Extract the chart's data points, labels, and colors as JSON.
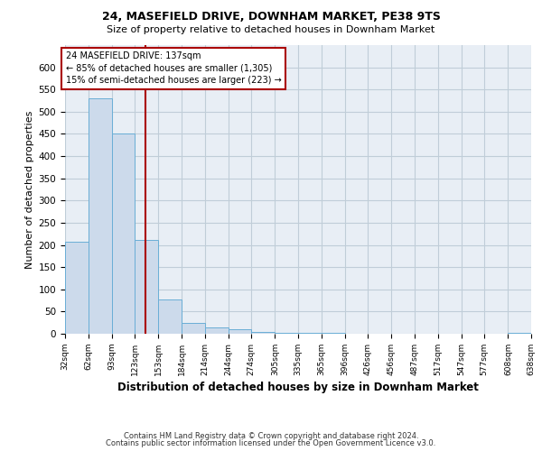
{
  "title1": "24, MASEFIELD DRIVE, DOWNHAM MARKET, PE38 9TS",
  "title2": "Size of property relative to detached houses in Downham Market",
  "xlabel": "Distribution of detached houses by size in Downham Market",
  "ylabel": "Number of detached properties",
  "bin_edges": [
    32,
    62,
    93,
    123,
    153,
    184,
    214,
    244,
    274,
    305,
    335,
    365,
    396,
    426,
    456,
    487,
    517,
    547,
    577,
    608,
    638
  ],
  "bar_heights": [
    208,
    530,
    450,
    212,
    78,
    25,
    15,
    10,
    5,
    3,
    2,
    3,
    1,
    1,
    1,
    1,
    1,
    1,
    1,
    3
  ],
  "bar_color": "#ccdaeb",
  "bar_edge_color": "#6aaed6",
  "vline_x": 137,
  "vline_color": "#aa0000",
  "annotation_title": "24 MASEFIELD DRIVE: 137sqm",
  "annotation_line1": "← 85% of detached houses are smaller (1,305)",
  "annotation_line2": "15% of semi-detached houses are larger (223) →",
  "annotation_box_color": "#ffffff",
  "annotation_box_edge": "#aa0000",
  "ylim": [
    0,
    650
  ],
  "yticks": [
    0,
    50,
    100,
    150,
    200,
    250,
    300,
    350,
    400,
    450,
    500,
    550,
    600
  ],
  "footnote1": "Contains HM Land Registry data © Crown copyright and database right 2024.",
  "footnote2": "Contains public sector information licensed under the Open Government Licence v3.0.",
  "bg_color": "#ffffff",
  "plot_bg_color": "#e8eef5",
  "grid_color": "#c0cdd8"
}
